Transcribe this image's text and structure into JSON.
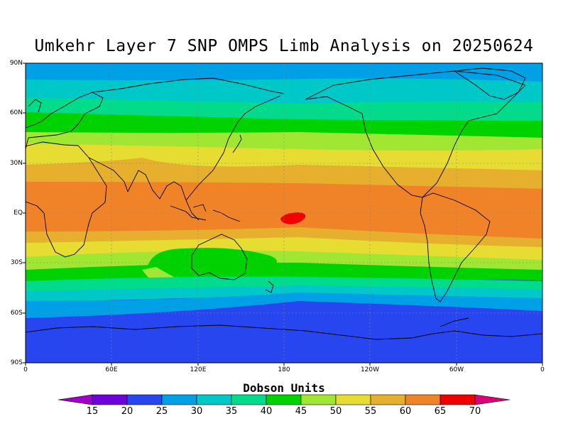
{
  "title": "Umkehr Layer 7 SNP OMPS Limb Analysis on 20250624",
  "y_tick_labels": [
    "90N",
    "60N",
    "30N",
    "EQ",
    "30S",
    "60S",
    "90S"
  ],
  "x_tick_labels": [
    "0",
    "60E",
    "120E",
    "180",
    "120W",
    "60W",
    "0"
  ],
  "colorbar": {
    "title": "Dobson Units",
    "labels": [
      "15",
      "20",
      "25",
      "30",
      "35",
      "40",
      "45",
      "50",
      "55",
      "60",
      "65",
      "70"
    ],
    "colors": [
      "#a000c8",
      "#6e00dc",
      "#2846f0",
      "#00a0e6",
      "#00c8c8",
      "#00dc8c",
      "#00d200",
      "#a0e632",
      "#e6dc32",
      "#e6af2d",
      "#f08228",
      "#f00000",
      "#dc0078"
    ]
  },
  "chart_data": {
    "type": "heatmap",
    "title": "Umkehr Layer 7 SNP OMPS Limb Analysis on 20250624",
    "units": "Dobson Units",
    "lat_range": [
      -90,
      90
    ],
    "lon_range": [
      0,
      360
    ],
    "zonal_profile": [
      {
        "lat": 90,
        "value": 29
      },
      {
        "lat": 80,
        "value": 32
      },
      {
        "lat": 70,
        "value": 37
      },
      {
        "lat": 60,
        "value": 43
      },
      {
        "lat": 50,
        "value": 46
      },
      {
        "lat": 40,
        "value": 52
      },
      {
        "lat": 30,
        "value": 56
      },
      {
        "lat": 20,
        "value": 60
      },
      {
        "lat": 10,
        "value": 62
      },
      {
        "lat": 0,
        "value": 62
      },
      {
        "lat": -10,
        "value": 60
      },
      {
        "lat": -20,
        "value": 55
      },
      {
        "lat": -30,
        "value": 46
      },
      {
        "lat": -40,
        "value": 38
      },
      {
        "lat": -50,
        "value": 30
      },
      {
        "lat": -60,
        "value": 23
      },
      {
        "lat": -70,
        "value": 22
      },
      {
        "lat": -80,
        "value": 22
      },
      {
        "lat": -90,
        "value": 22
      }
    ],
    "features": [
      {
        "name": "maximum",
        "lat": 0,
        "lon": 188,
        "value": 66
      },
      {
        "name": "green-tongue",
        "lat": -35,
        "lon": 120,
        "value": 42
      }
    ],
    "grid": true
  }
}
